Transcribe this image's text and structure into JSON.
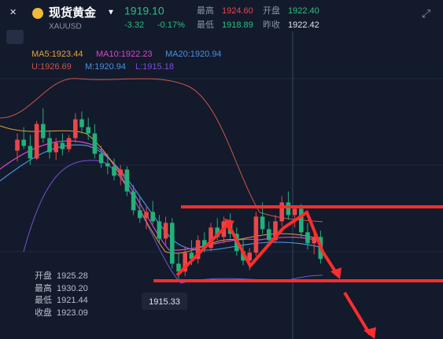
{
  "header": {
    "name": "现货黄金",
    "code": "XAUUSD",
    "price": "1919.10",
    "change": "-3.32",
    "change_pct": "-0.17%",
    "high_label": "最高",
    "high": "1924.60",
    "open_label": "开盘",
    "open": "1922.40",
    "low_label": "最低",
    "low": "1918.89",
    "prev_close_label": "昨收",
    "prev_close": "1922.42"
  },
  "indicators": {
    "ma5": "MA5:1923.44",
    "ma10": "MA10:1922.23",
    "ma20": "MA20:1920.94",
    "upper": "U:1926.69",
    "mid": "M:1920.94",
    "lower": "L:1915.18"
  },
  "tooltip": {
    "open_label": "开盘",
    "open": "1925.28",
    "high_label": "最高",
    "high": "1930.20",
    "low_label": "最低",
    "low": "1921.44",
    "close_label": "收盘",
    "close": "1923.09"
  },
  "low_marker": "1915.33",
  "chart": {
    "ylim": [
      1911.5,
      1933.1
    ],
    "up_color": "#e8474a",
    "down_color": "#23b07a",
    "candles": [
      [
        1923.5,
        1924.6,
        1922.8,
        1924.2
      ],
      [
        1924.2,
        1925.0,
        1923.6,
        1923.8
      ],
      [
        1923.8,
        1924.5,
        1922.6,
        1923.0
      ],
      [
        1923.0,
        1925.4,
        1922.9,
        1925.2
      ],
      [
        1925.2,
        1926.2,
        1924.0,
        1924.3
      ],
      [
        1924.3,
        1924.8,
        1923.0,
        1923.4
      ],
      [
        1923.4,
        1924.3,
        1922.9,
        1924.0
      ],
      [
        1924.0,
        1924.6,
        1923.2,
        1923.6
      ],
      [
        1923.6,
        1924.5,
        1923.4,
        1924.3
      ],
      [
        1924.3,
        1925.9,
        1924.0,
        1925.5
      ],
      [
        1925.5,
        1926.0,
        1924.6,
        1925.0
      ],
      [
        1925.0,
        1925.6,
        1924.2,
        1924.6
      ],
      [
        1924.6,
        1925.2,
        1923.0,
        1923.3
      ],
      [
        1923.3,
        1923.8,
        1922.4,
        1922.7
      ],
      [
        1922.7,
        1923.3,
        1922.0,
        1922.5
      ],
      [
        1922.5,
        1923.0,
        1921.6,
        1921.9
      ],
      [
        1921.9,
        1922.6,
        1921.3,
        1922.3
      ],
      [
        1922.3,
        1922.5,
        1920.6,
        1920.9
      ],
      [
        1920.9,
        1921.3,
        1919.4,
        1919.7
      ],
      [
        1919.7,
        1920.6,
        1918.9,
        1919.2
      ],
      [
        1919.2,
        1919.9,
        1918.5,
        1919.6
      ],
      [
        1919.6,
        1920.3,
        1918.8,
        1919.0
      ],
      [
        1919.0,
        1919.4,
        1917.6,
        1917.9
      ],
      [
        1917.9,
        1919.3,
        1917.5,
        1918.9
      ],
      [
        1918.9,
        1919.2,
        1916.0,
        1916.3
      ],
      [
        1916.3,
        1917.0,
        1915.33,
        1915.8
      ],
      [
        1915.8,
        1917.4,
        1915.5,
        1917.0
      ],
      [
        1917.0,
        1917.8,
        1916.2,
        1916.6
      ],
      [
        1916.6,
        1918.1,
        1916.3,
        1917.8
      ],
      [
        1917.8,
        1918.3,
        1917.0,
        1917.3
      ],
      [
        1917.3,
        1918.9,
        1917.1,
        1918.6
      ],
      [
        1918.6,
        1919.2,
        1917.8,
        1918.0
      ],
      [
        1918.0,
        1919.3,
        1917.6,
        1919.0
      ],
      [
        1919.0,
        1919.5,
        1917.9,
        1918.2
      ],
      [
        1918.2,
        1918.6,
        1916.8,
        1917.1
      ],
      [
        1917.1,
        1917.9,
        1916.2,
        1916.5
      ],
      [
        1916.5,
        1917.3,
        1915.9,
        1917.0
      ],
      [
        1917.0,
        1919.6,
        1916.8,
        1919.3
      ],
      [
        1919.3,
        1920.2,
        1918.2,
        1918.5
      ],
      [
        1918.5,
        1919.0,
        1917.4,
        1917.8
      ],
      [
        1917.8,
        1919.4,
        1917.6,
        1919.0
      ],
      [
        1919.0,
        1920.6,
        1918.7,
        1920.2
      ],
      [
        1920.2,
        1920.9,
        1919.1,
        1919.4
      ],
      [
        1919.4,
        1920.0,
        1918.6,
        1919.8
      ],
      [
        1919.8,
        1920.1,
        1918.0,
        1918.3
      ],
      [
        1918.3,
        1918.9,
        1917.2,
        1917.6
      ],
      [
        1917.6,
        1918.5,
        1916.9,
        1918.0
      ],
      [
        1918.0,
        1918.4,
        1916.3,
        1916.6
      ]
    ]
  }
}
